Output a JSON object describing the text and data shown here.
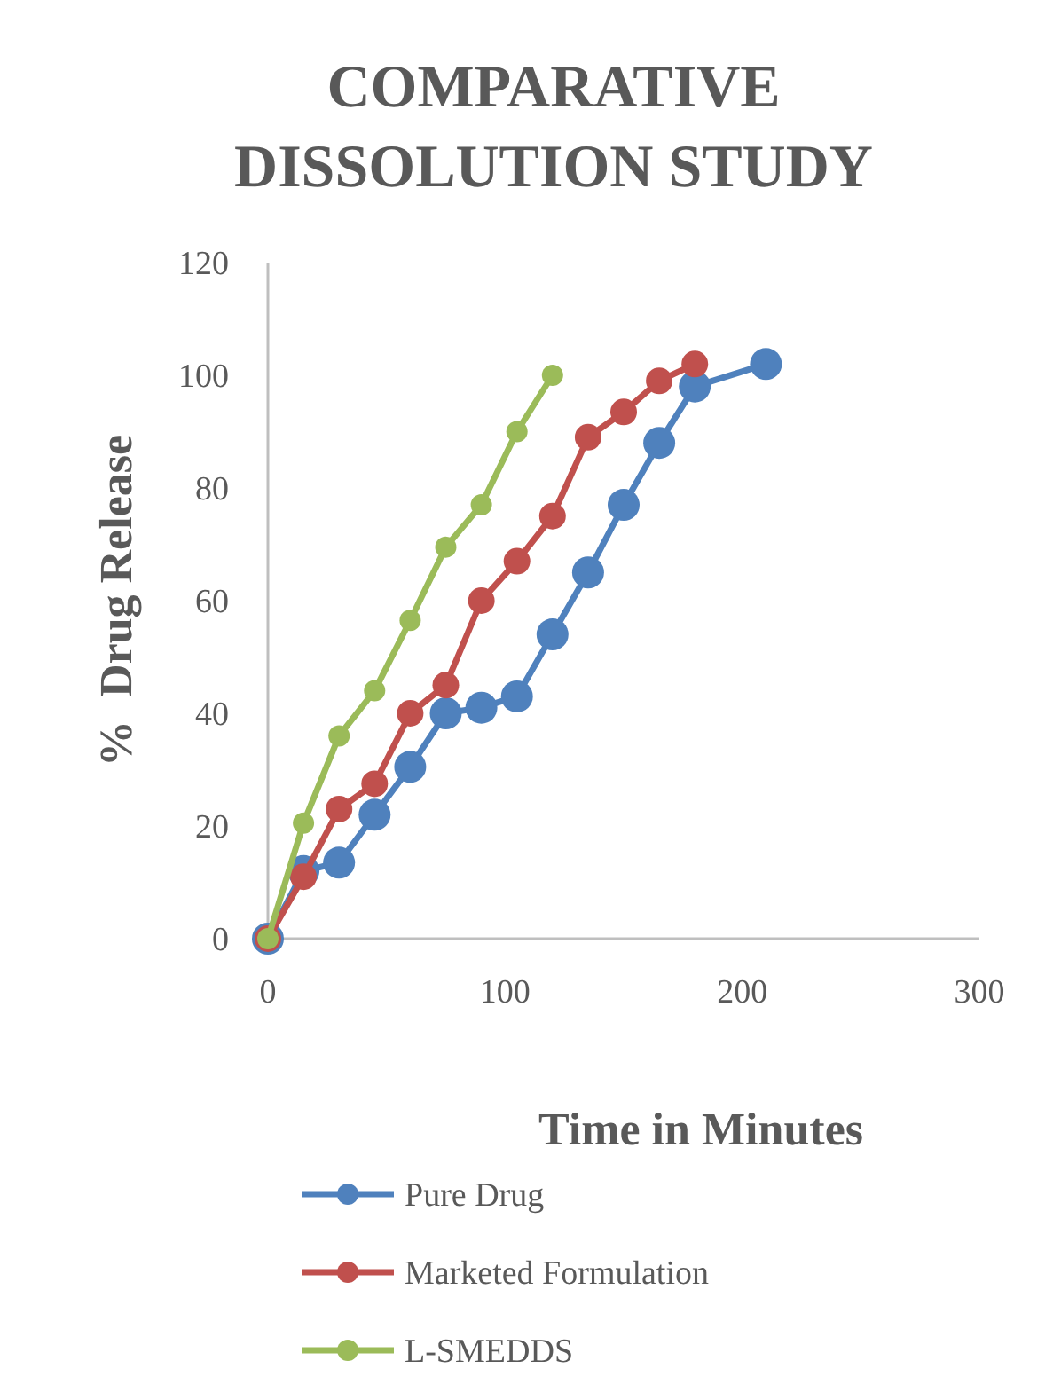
{
  "chart_data": {
    "type": "line",
    "title": "COMPARATIVE DISSOLUTION STUDY",
    "xlabel": "Time in Minutes",
    "ylabel": "%  Drug Release",
    "xlim": [
      0,
      300
    ],
    "xticks": [
      0,
      100,
      200,
      300
    ],
    "ylim": [
      0,
      120
    ],
    "yticks": [
      0,
      20,
      40,
      60,
      80,
      100,
      120
    ],
    "grid": false,
    "legend": "bottom",
    "marker": "circle",
    "line_style": "solid",
    "series": [
      {
        "name": "Pure Drug",
        "color": "#4f81bd",
        "x": [
          0,
          15,
          30,
          45,
          60,
          75,
          90,
          105,
          120,
          135,
          150,
          165,
          180,
          210
        ],
        "values": [
          0,
          12,
          13.5,
          22,
          30.5,
          40,
          41,
          43,
          54,
          65,
          77,
          88,
          98,
          102
        ]
      },
      {
        "name": "Marketed Formulation",
        "color": "#c0504d",
        "x": [
          0,
          15,
          30,
          45,
          60,
          75,
          90,
          105,
          120,
          135,
          150,
          165,
          180
        ],
        "values": [
          0,
          11,
          23,
          27.5,
          40,
          45,
          60,
          67,
          75,
          89,
          93.5,
          99,
          102
        ]
      },
      {
        "name": "L-SMEDDS",
        "color": "#9bbb59",
        "x": [
          0,
          15,
          30,
          45,
          60,
          75,
          90,
          105,
          120
        ],
        "values": [
          0,
          20.5,
          36,
          44,
          56.5,
          69.5,
          77,
          90,
          100
        ]
      }
    ]
  }
}
